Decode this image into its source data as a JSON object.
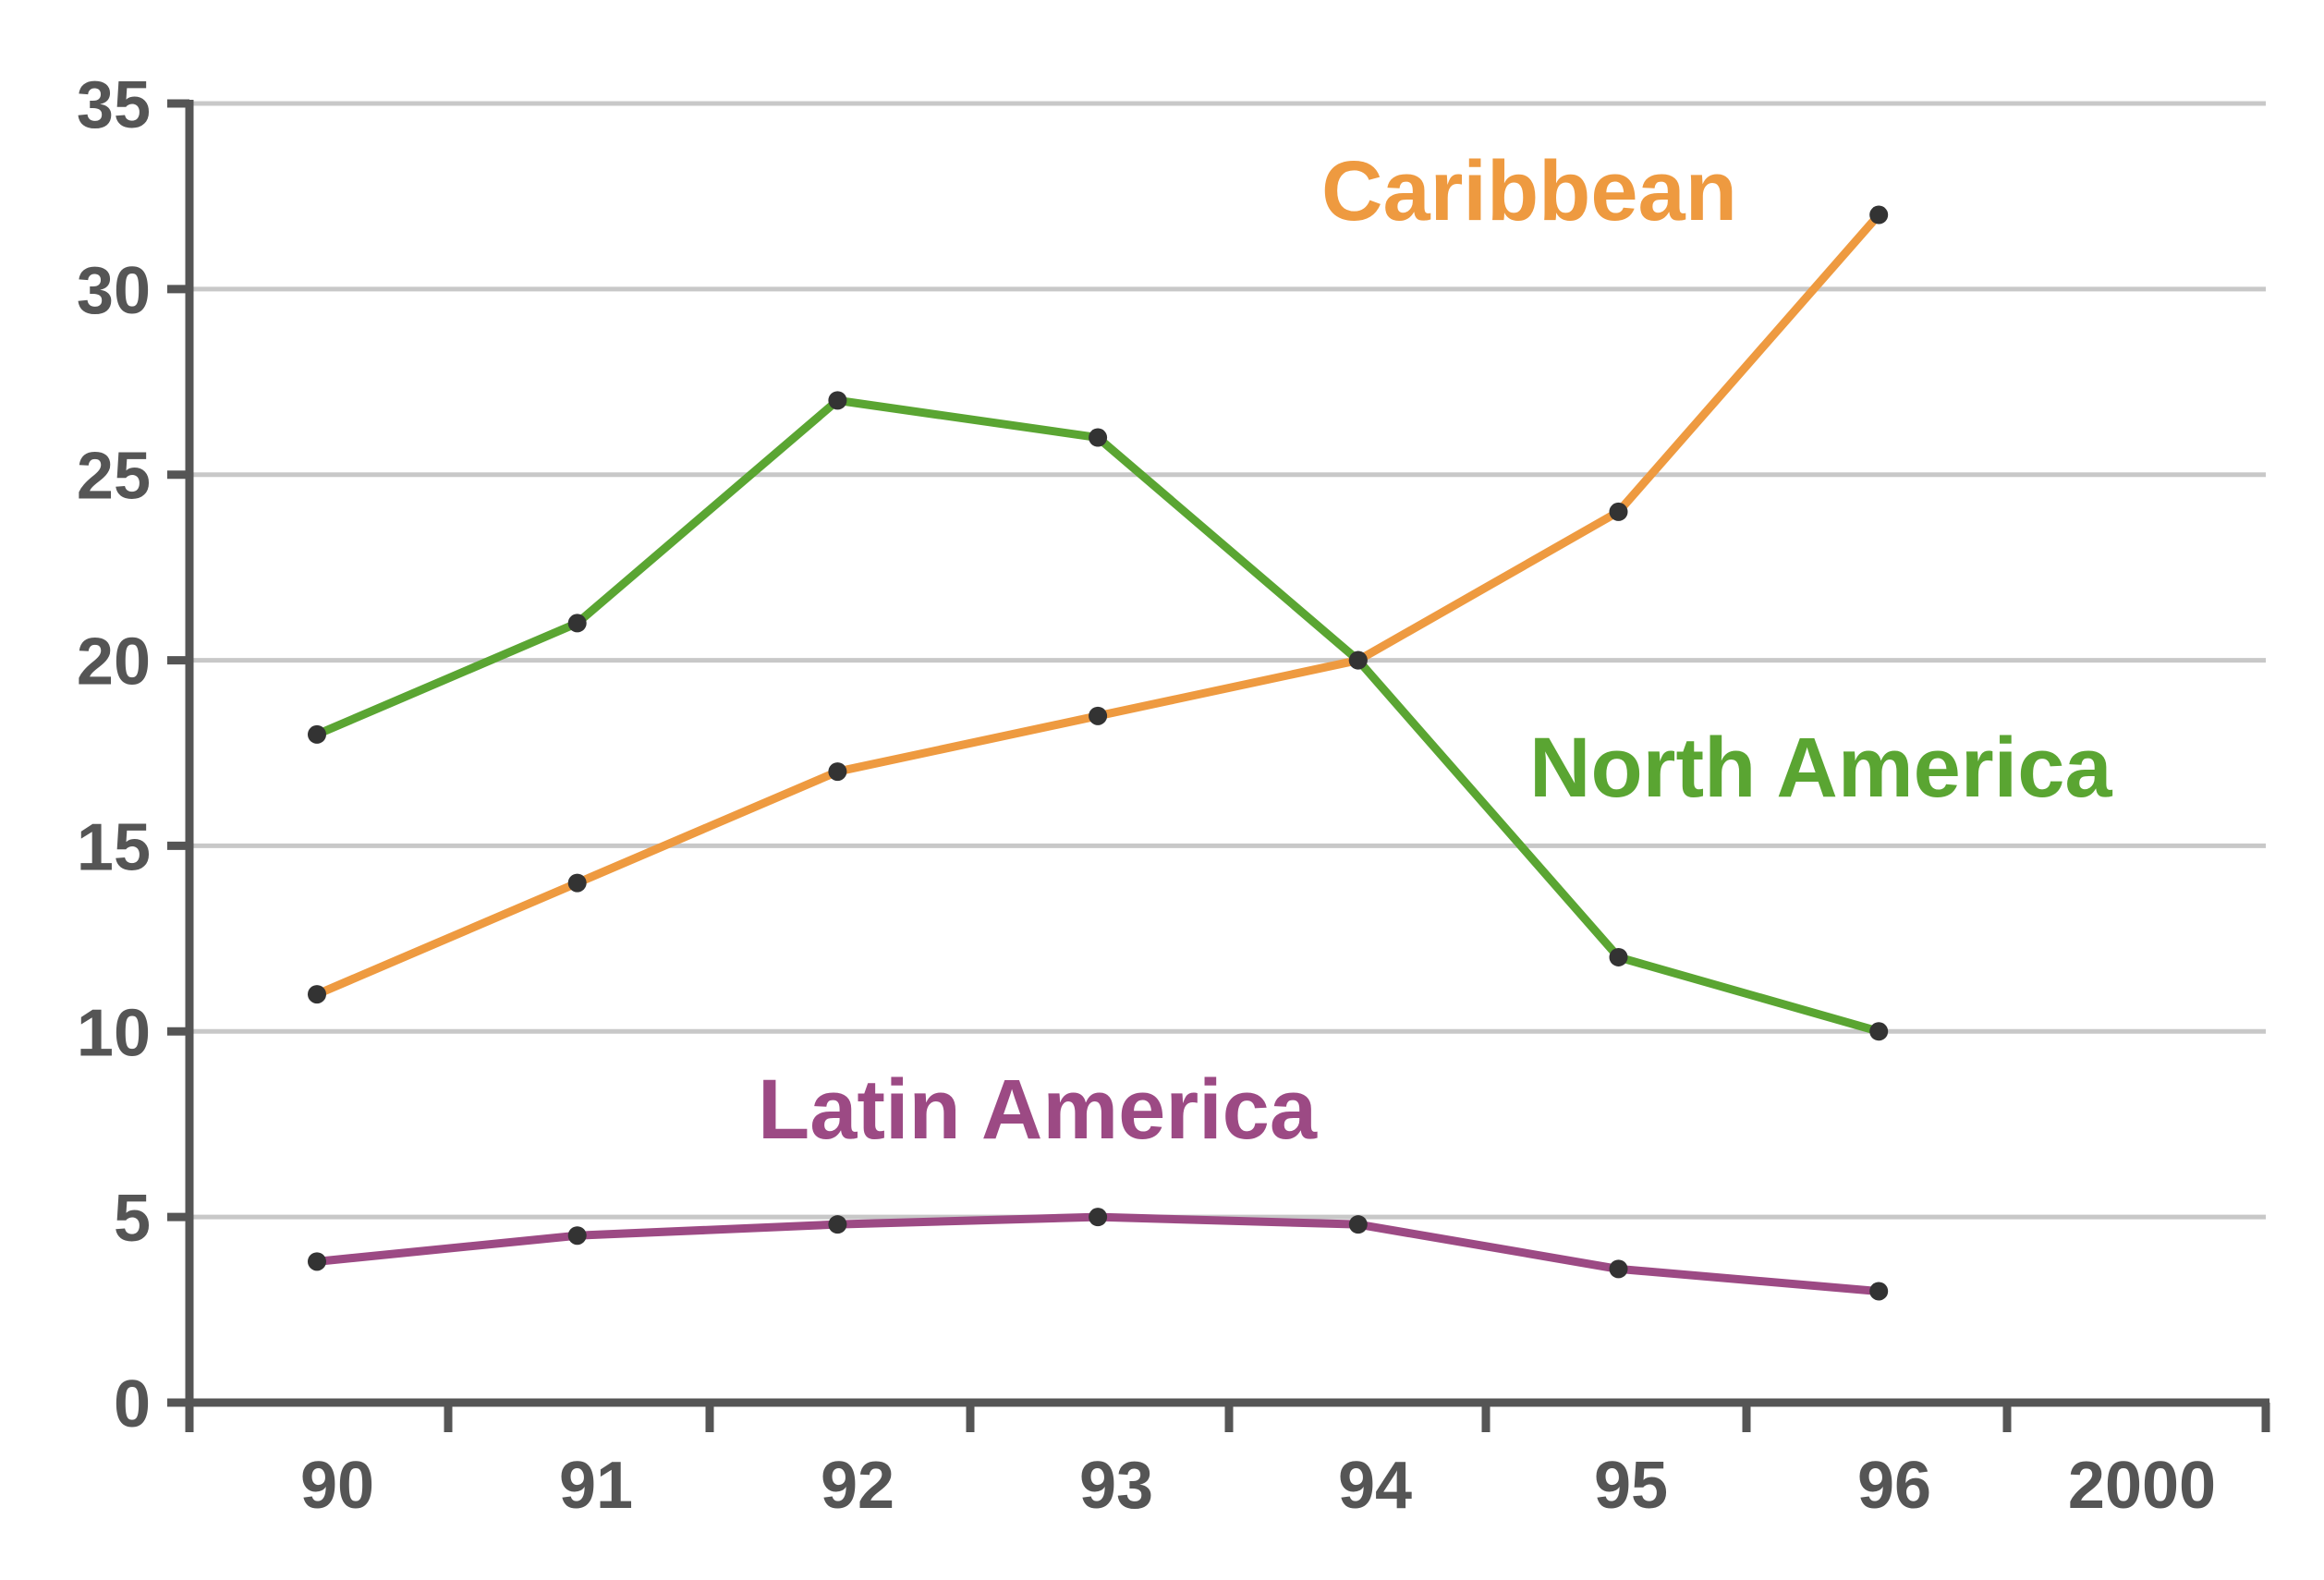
{
  "chart_data": {
    "type": "line",
    "title": "",
    "xlabel": "",
    "ylabel": "",
    "ylim": [
      0,
      35
    ],
    "yticks": [
      "0",
      "5",
      "10",
      "15",
      "20",
      "25",
      "30",
      "35"
    ],
    "x_axis_ticks": [
      "90",
      "91",
      "92",
      "93",
      "94",
      "95",
      "96",
      "2000"
    ],
    "categories": [
      "90",
      "91",
      "92",
      "93",
      "94",
      "95",
      "96"
    ],
    "grid": true,
    "legend": "inline labels next to lines",
    "series": [
      {
        "name": "Caribbean",
        "color": "#ee9a40",
        "values": [
          11,
          14,
          17,
          18.5,
          20,
          24,
          32
        ]
      },
      {
        "name": "North America",
        "color": "#5aa532",
        "values": [
          18,
          21,
          27,
          26,
          20,
          12,
          10
        ]
      },
      {
        "name": "Latin America",
        "color": "#9c4a84",
        "values": [
          3.8,
          4.5,
          4.8,
          5,
          4.8,
          3.6,
          3
        ]
      }
    ]
  }
}
